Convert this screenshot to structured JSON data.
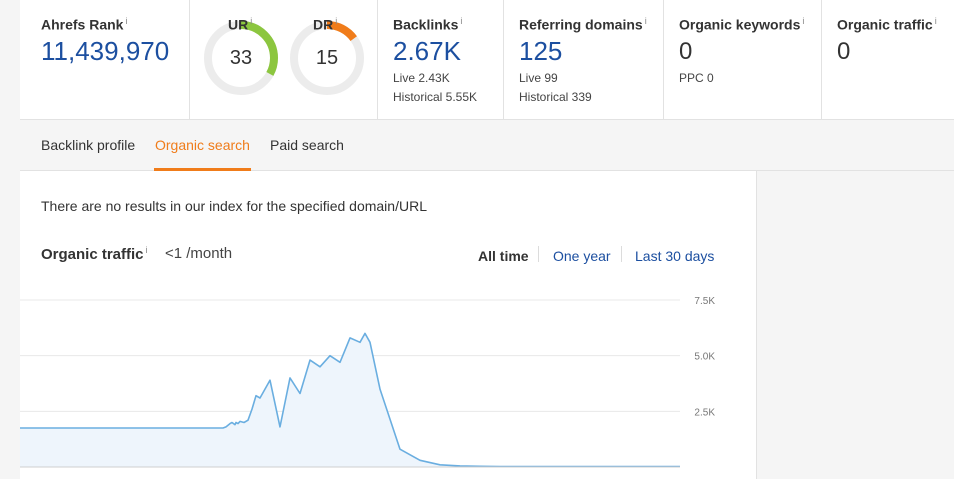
{
  "metrics": {
    "ahrefs_rank": {
      "label": "Ahrefs Rank",
      "value": "11,439,970"
    },
    "ur": {
      "label": "UR",
      "value": "33",
      "color": "#8cc63f",
      "fraction": 0.33
    },
    "dr": {
      "label": "DR",
      "value": "15",
      "color": "#f07c1a",
      "fraction": 0.15
    },
    "backlinks": {
      "label": "Backlinks",
      "value": "2.67K",
      "live": "Live 2.43K",
      "historical": "Historical 5.55K"
    },
    "referring_domains": {
      "label": "Referring domains",
      "value": "125",
      "live": "Live 99",
      "historical": "Historical 339"
    },
    "organic_keywords": {
      "label": "Organic keywords",
      "value": "0",
      "ppc": "PPC 0"
    },
    "organic_traffic": {
      "label": "Organic traffic",
      "value": "0"
    },
    "info_glyph": "i"
  },
  "tabs": [
    {
      "label": "Backlink profile",
      "active": false
    },
    {
      "label": "Organic search",
      "active": true
    },
    {
      "label": "Paid search",
      "active": false
    }
  ],
  "panel": {
    "no_results": "There are no results in our index for the specified domain/URL",
    "title": "Organic traffic",
    "traffic_value": "<1 /month",
    "ranges": [
      {
        "label": "All time",
        "active": true
      },
      {
        "label": "One year",
        "active": false
      },
      {
        "label": "Last 30 days",
        "active": false
      }
    ]
  },
  "chart_data": {
    "type": "area",
    "title": "Organic traffic",
    "ylim": [
      0,
      7500
    ],
    "yticks": [
      "7.5K",
      "5.0K",
      "2.5K"
    ],
    "ytick_values": [
      7500,
      5000,
      2500
    ],
    "grid": true,
    "color": "#6aaee0",
    "fill": "#eef5fc",
    "x": [
      0,
      10,
      20,
      25,
      30,
      40,
      50,
      55,
      60,
      64,
      70,
      72,
      74,
      76,
      78,
      80,
      84,
      86,
      88,
      90,
      95,
      97,
      100,
      110,
      120,
      130,
      140,
      150,
      160,
      170,
      175,
      180,
      186,
      190,
      195,
      197,
      199,
      201,
      203,
      206,
      210,
      212,
      215,
      216,
      218,
      220,
      224,
      228,
      232,
      236,
      240,
      250,
      260,
      270,
      280,
      290,
      300,
      310,
      320,
      330,
      340,
      345,
      350,
      360,
      380,
      400,
      420,
      440,
      460,
      480,
      500,
      520,
      540,
      560,
      580,
      600,
      620,
      640,
      660
    ],
    "values": [
      1750,
      1750,
      1750,
      1750,
      1750,
      1750,
      1750,
      1750,
      1750,
      1750,
      1750,
      1750,
      1750,
      1750,
      1750,
      1750,
      1750,
      1750,
      1750,
      1750,
      1750,
      1750,
      1750,
      1750,
      1750,
      1750,
      1750,
      1750,
      1750,
      1750,
      1750,
      1750,
      1750,
      1750,
      1750,
      1750,
      1750,
      1750,
      1750,
      1800,
      1950,
      2000,
      1900,
      2000,
      1950,
      2050,
      2000,
      2100,
      2600,
      3200,
      3100,
      3900,
      1800,
      4000,
      3300,
      4800,
      4500,
      5000,
      4700,
      5800,
      5600,
      6000,
      5600,
      3500,
      800,
      300,
      100,
      50,
      30,
      20,
      20,
      20,
      20,
      20,
      20,
      20,
      20,
      20,
      20
    ]
  }
}
